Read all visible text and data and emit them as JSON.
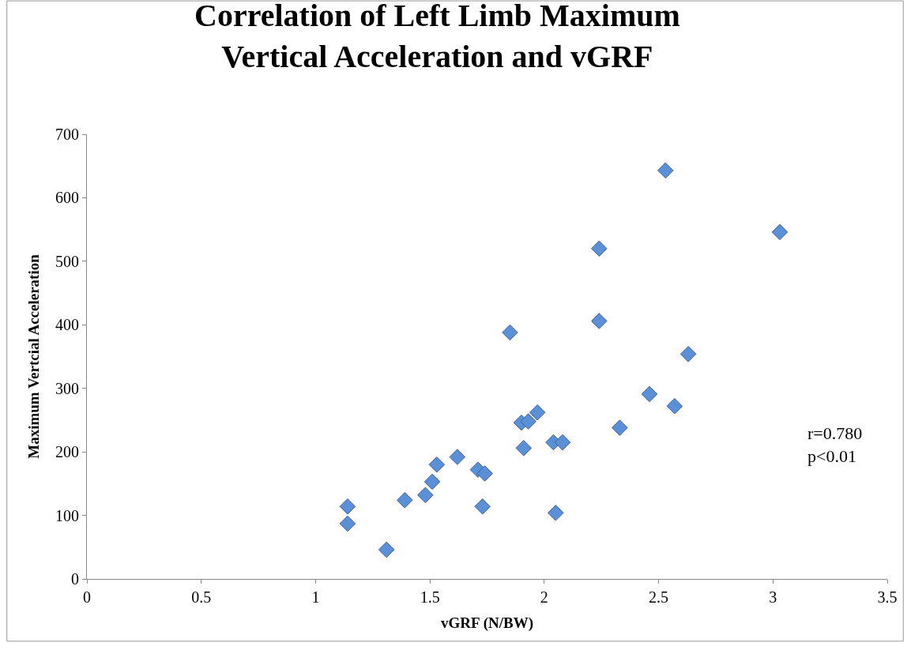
{
  "chart_data": {
    "type": "scatter",
    "title": "Correlation of Left Limb Maximum\nVertical Acceleration and vGRF",
    "xlabel": "vGRF (N/BW)",
    "ylabel": "Maximum Vertcial Acceleration",
    "x": [
      1.14,
      1.14,
      1.31,
      1.39,
      1.48,
      1.51,
      1.53,
      1.62,
      1.71,
      1.73,
      1.74,
      1.85,
      1.9,
      1.91,
      1.93,
      1.97,
      2.04,
      2.05,
      2.08,
      2.24,
      2.24,
      2.33,
      2.46,
      2.57,
      2.53,
      2.63,
      3.03
    ],
    "series": [
      {
        "color": "#5b8fd6",
        "values": [
          114,
          87,
          46,
          124,
          132,
          153,
          180,
          192,
          172,
          114,
          166,
          388,
          246,
          206,
          248,
          262,
          215,
          104,
          215,
          520,
          406,
          238,
          291,
          272,
          643,
          354,
          546
        ]
      }
    ],
    "xlim": [
      0,
      3.5
    ],
    "xticks": [
      0,
      0.5,
      1,
      1.5,
      2,
      2.5,
      3,
      3.5
    ],
    "ylim": [
      0,
      700
    ],
    "yticks": [
      0,
      100,
      200,
      300,
      400,
      500,
      600,
      700
    ],
    "marker": "diamond",
    "grid": false,
    "annotations": [
      "r=0.780\np<0.01"
    ]
  }
}
